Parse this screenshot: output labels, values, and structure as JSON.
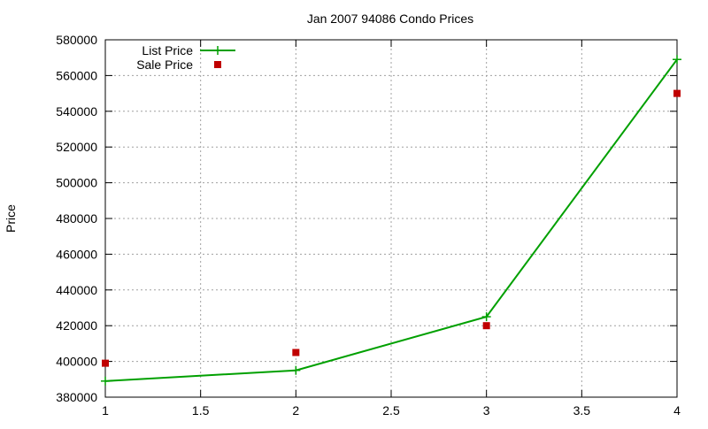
{
  "chart_data": {
    "type": "line",
    "title": "Jan 2007 94086 Condo Prices",
    "xlabel": "",
    "ylabel": "Price",
    "xlim": [
      1,
      4
    ],
    "ylim": [
      380000,
      580000
    ],
    "x_ticks": [
      1,
      1.5,
      2,
      2.5,
      3,
      3.5,
      4
    ],
    "x_tick_labels": [
      "1",
      "1.5",
      "2",
      "2.5",
      "3",
      "3.5",
      "4"
    ],
    "y_ticks": [
      380000,
      400000,
      420000,
      440000,
      460000,
      480000,
      500000,
      520000,
      540000,
      560000,
      580000
    ],
    "y_tick_labels": [
      "380000",
      "400000",
      "420000",
      "440000",
      "460000",
      "480000",
      "500000",
      "520000",
      "540000",
      "560000",
      "580000"
    ],
    "grid": true,
    "legend_position": "top-left",
    "series": [
      {
        "name": "List Price",
        "style": "line-with-plus-markers",
        "color": "#00a000",
        "x": [
          1,
          2,
          3,
          4
        ],
        "values": [
          389000,
          395000,
          425000,
          569000
        ]
      },
      {
        "name": "Sale Price",
        "style": "square-markers",
        "color": "#c00000",
        "x": [
          1,
          2,
          3,
          4
        ],
        "values": [
          399000,
          405000,
          420000,
          550000
        ]
      }
    ]
  }
}
